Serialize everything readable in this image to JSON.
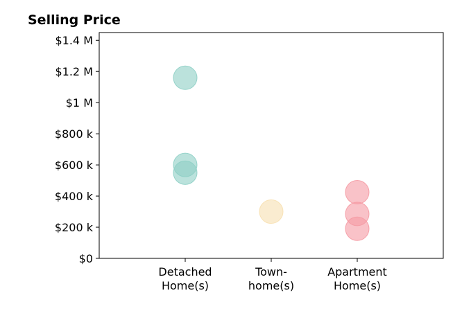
{
  "chart_data": {
    "type": "scatter",
    "title": "Selling Price",
    "xlabel": "",
    "ylabel": "",
    "categories": [
      "Detached\nHome(s)",
      "Town-\nhome(s)",
      "Apartment\nHome(s)"
    ],
    "y_ticks": [
      {
        "value": 0,
        "label": "$0"
      },
      {
        "value": 200000,
        "label": "$200 k"
      },
      {
        "value": 400000,
        "label": "$400 k"
      },
      {
        "value": 600000,
        "label": "$600 k"
      },
      {
        "value": 800000,
        "label": "$800 k"
      },
      {
        "value": 1000000,
        "label": "$1 M"
      },
      {
        "value": 1200000,
        "label": "$1.2 M"
      },
      {
        "value": 1400000,
        "label": "$1.4 M"
      }
    ],
    "xlim": [
      -1,
      3
    ],
    "ylim": [
      0,
      1450000
    ],
    "grid": false,
    "series": [
      {
        "category": 0,
        "color": "#8dcfc5",
        "values": [
          1160000,
          600000,
          550000
        ]
      },
      {
        "category": 1,
        "color": "#f7e0b0",
        "values": [
          300000
        ]
      },
      {
        "category": 2,
        "color": "#f59aa3",
        "values": [
          425000,
          285000,
          190000
        ]
      }
    ]
  }
}
